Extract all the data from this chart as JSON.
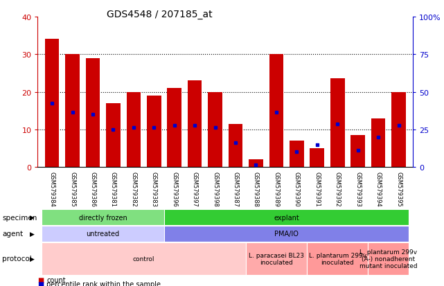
{
  "title": "GDS4548 / 207185_at",
  "categories": [
    "GSM579384",
    "GSM579385",
    "GSM579386",
    "GSM579381",
    "GSM579382",
    "GSM579383",
    "GSM579396",
    "GSM579397",
    "GSM579398",
    "GSM579387",
    "GSM579388",
    "GSM579389",
    "GSM579390",
    "GSM579391",
    "GSM579392",
    "GSM579393",
    "GSM579394",
    "GSM579395"
  ],
  "counts": [
    34,
    30,
    29,
    17,
    20,
    19,
    21,
    23,
    20,
    11.5,
    2,
    30,
    7,
    5,
    23.5,
    8.5,
    13,
    20
  ],
  "percentiles": [
    17,
    14.5,
    14,
    10,
    10.5,
    10.5,
    11,
    11,
    10.5,
    6.5,
    0.5,
    14.5,
    4,
    6,
    11.5,
    4.5,
    8,
    11
  ],
  "ylim_left": [
    0,
    40
  ],
  "ylim_right": [
    0,
    100
  ],
  "yticks_left": [
    0,
    10,
    20,
    30,
    40
  ],
  "yticks_right": [
    0,
    25,
    50,
    75,
    100
  ],
  "bar_color": "#cc0000",
  "dot_color": "#0000cc",
  "title_color": "#000000",
  "axis_color_left": "#cc0000",
  "axis_color_right": "#0000cc",
  "specimen_groups": [
    {
      "text": "directly frozen",
      "start": 0,
      "end": 6,
      "color": "#80e080"
    },
    {
      "text": "explant",
      "start": 6,
      "end": 18,
      "color": "#33cc33"
    }
  ],
  "agent_groups": [
    {
      "text": "untreated",
      "start": 0,
      "end": 6,
      "color": "#ccccff"
    },
    {
      "text": "PMA/IO",
      "start": 6,
      "end": 18,
      "color": "#8080e8"
    }
  ],
  "protocol_groups": [
    {
      "text": "control",
      "start": 0,
      "end": 10,
      "color": "#ffcccc"
    },
    {
      "text": "L. paracasei BL23\ninoculated",
      "start": 10,
      "end": 13,
      "color": "#ffaaaa"
    },
    {
      "text": "L. plantarum 299v\ninoculated",
      "start": 13,
      "end": 16,
      "color": "#ff9999"
    },
    {
      "text": "L. plantarum 299v\n(A-) nonadherent\nmutant inoculated",
      "start": 16,
      "end": 18,
      "color": "#ff9999"
    }
  ],
  "bg_color": "#ffffff",
  "tick_bg_color": "#c8c8c8"
}
